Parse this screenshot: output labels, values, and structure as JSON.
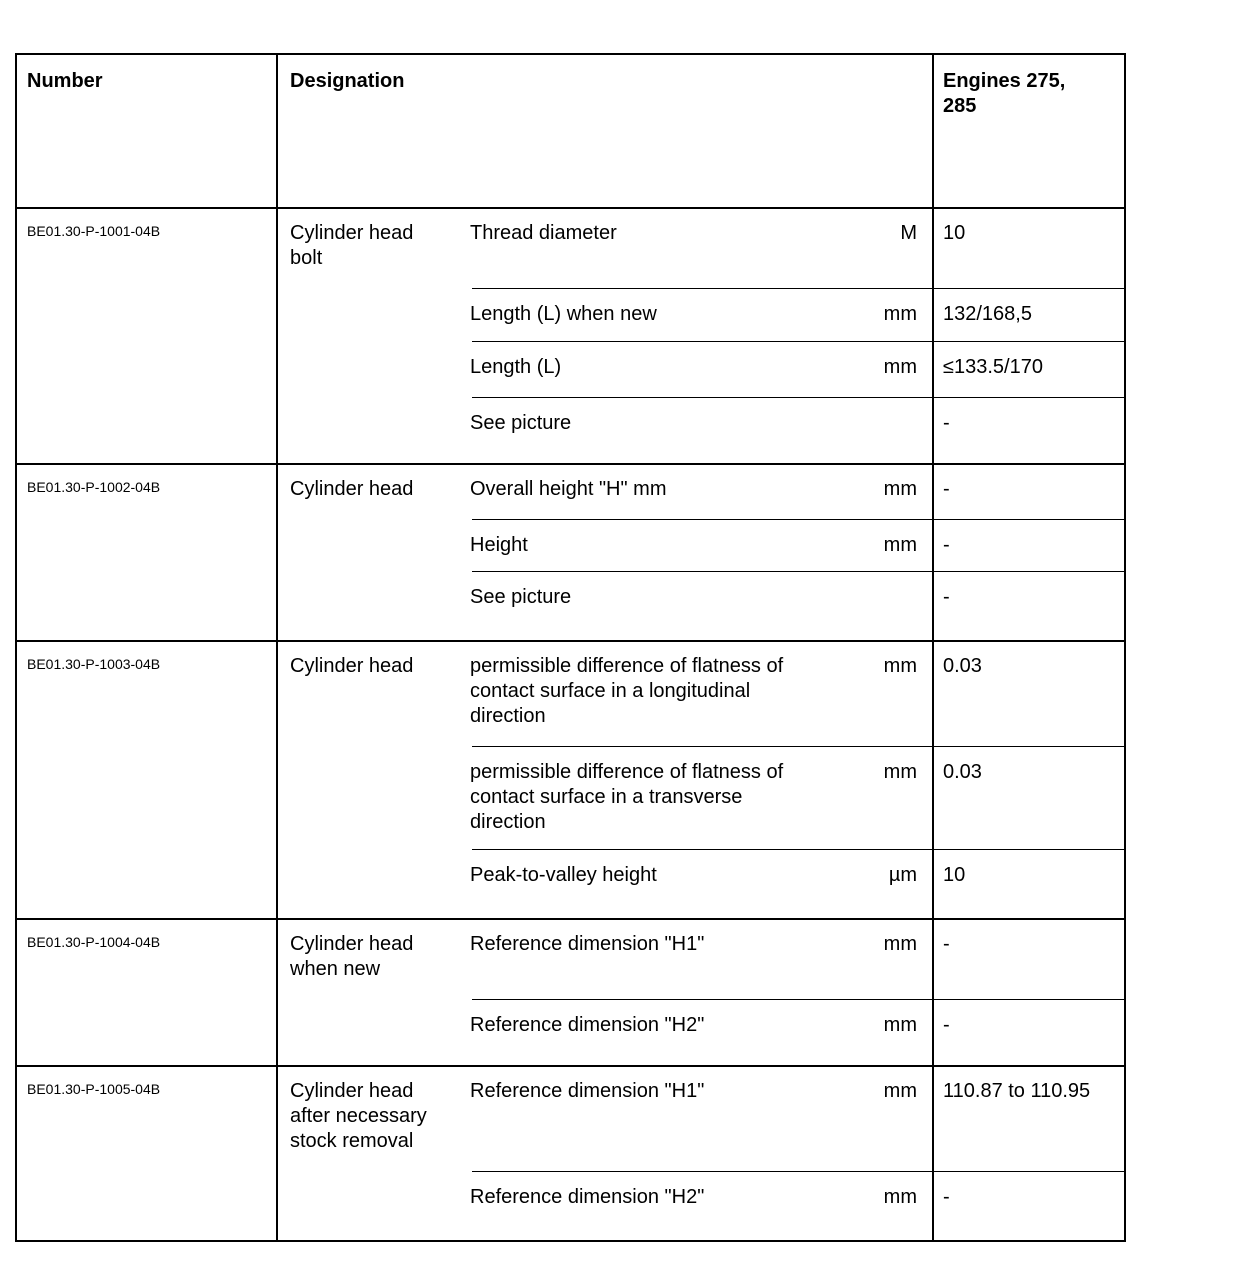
{
  "header": {
    "number": "Number",
    "designation": "Designation",
    "engines": "Engines 275,\n285"
  },
  "rows": [
    {
      "number": "BE01.30-P-1001-04B",
      "component": "Cylinder head\nbolt",
      "params": [
        {
          "label": "Thread diameter",
          "unit": "M",
          "value": "10"
        },
        {
          "label": "Length (L) when new",
          "unit": "mm",
          "value": "132/168,5"
        },
        {
          "label": "Length (L)",
          "unit": "mm",
          "value": "≤133.5/170"
        },
        {
          "label": "See picture",
          "unit": "",
          "value": "-"
        }
      ]
    },
    {
      "number": "BE01.30-P-1002-04B",
      "component": "Cylinder head",
      "params": [
        {
          "label": "Overall height \"H\" mm",
          "unit": "mm",
          "value": "-"
        },
        {
          "label": "Height",
          "unit": "mm",
          "value": "-"
        },
        {
          "label": "See picture",
          "unit": "",
          "value": "-"
        }
      ]
    },
    {
      "number": "BE01.30-P-1003-04B",
      "component": "Cylinder head",
      "params": [
        {
          "label": "permissible difference of flatness of\ncontact surface in a longitudinal\ndirection",
          "unit": "mm",
          "value": "0.03"
        },
        {
          "label": "permissible difference of flatness of\ncontact surface in a transverse\ndirection",
          "unit": "mm",
          "value": "0.03"
        },
        {
          "label": "Peak-to-valley height",
          "unit": "µm",
          "value": "10"
        }
      ]
    },
    {
      "number": "BE01.30-P-1004-04B",
      "component": "Cylinder head\nwhen new",
      "params": [
        {
          "label": "Reference dimension \"H1\"",
          "unit": "mm",
          "value": "-"
        },
        {
          "label": "Reference dimension \"H2\"",
          "unit": "mm",
          "value": "-"
        }
      ]
    },
    {
      "number": "BE01.30-P-1005-04B",
      "component": "Cylinder head\nafter necessary\nstock removal",
      "params": [
        {
          "label": "Reference dimension \"H1\"",
          "unit": "mm",
          "value": "110.87 to 110.95"
        },
        {
          "label": "Reference dimension \"H2\"",
          "unit": "mm",
          "value": "-"
        }
      ]
    }
  ]
}
